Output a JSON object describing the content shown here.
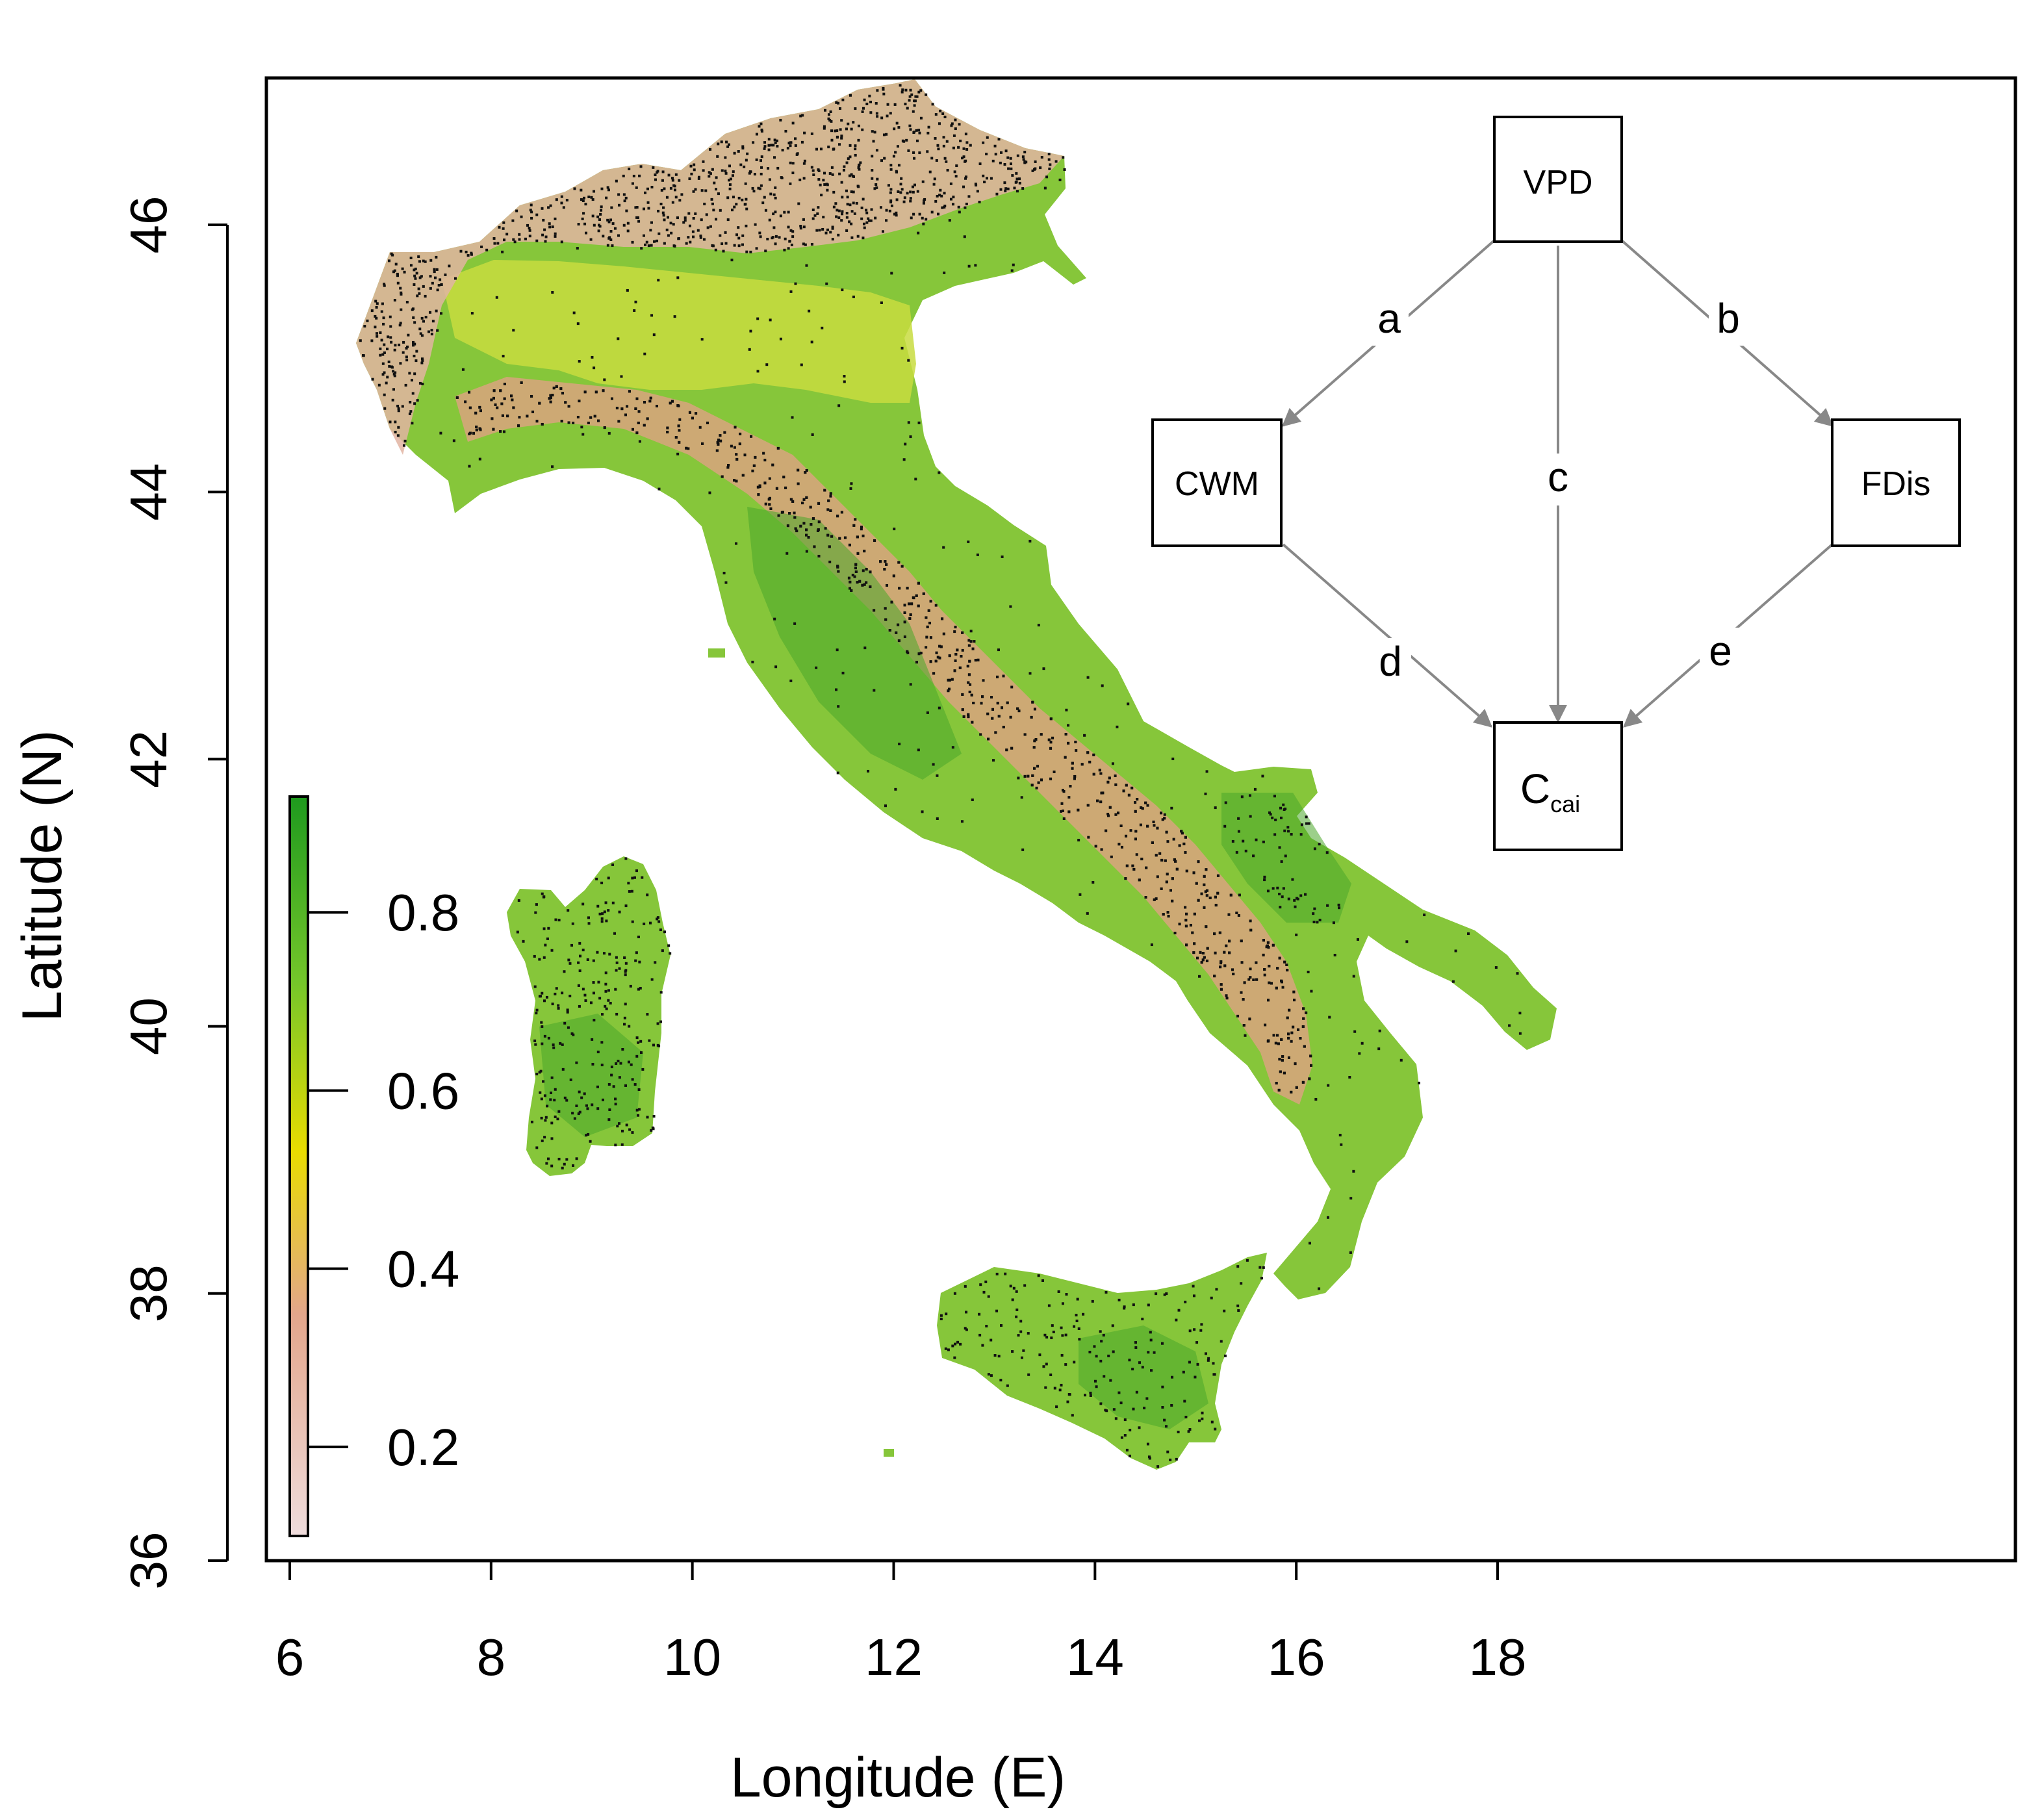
{
  "axes": {
    "x_label": "Longitude (E)",
    "y_label": "Latitude (N)",
    "x_ticks": [
      "6",
      "8",
      "10",
      "12",
      "14",
      "16",
      "18"
    ],
    "y_ticks": [
      "36",
      "38",
      "40",
      "42",
      "44",
      "46"
    ],
    "x_range": [
      5.8,
      24.8
    ],
    "y_range": [
      36,
      47.1
    ]
  },
  "legend": {
    "ticks": [
      "0.2",
      "0.4",
      "0.6",
      "0.8"
    ],
    "range": [
      0.1,
      0.93
    ],
    "colors": [
      "#efdcdc",
      "#e3a68b",
      "#e9dc00",
      "#74c62a",
      "#1e9a1e"
    ]
  },
  "diagram": {
    "nodes": {
      "vpd": "VPD",
      "cwm": "CWM",
      "fdis": "FDis",
      "ccai_main": "C",
      "ccai_sub": "cai"
    },
    "paths": {
      "a": "a",
      "b": "b",
      "c": "c",
      "d": "d",
      "e": "e"
    },
    "arrow_color": "#888888"
  },
  "map_colors": {
    "alpine": "#e2b4a2",
    "plain": "#c8dc40",
    "lowland": "#86c63a",
    "forest": "#4aa82a",
    "apennine": "#d9a37f",
    "plots": "#111111"
  }
}
